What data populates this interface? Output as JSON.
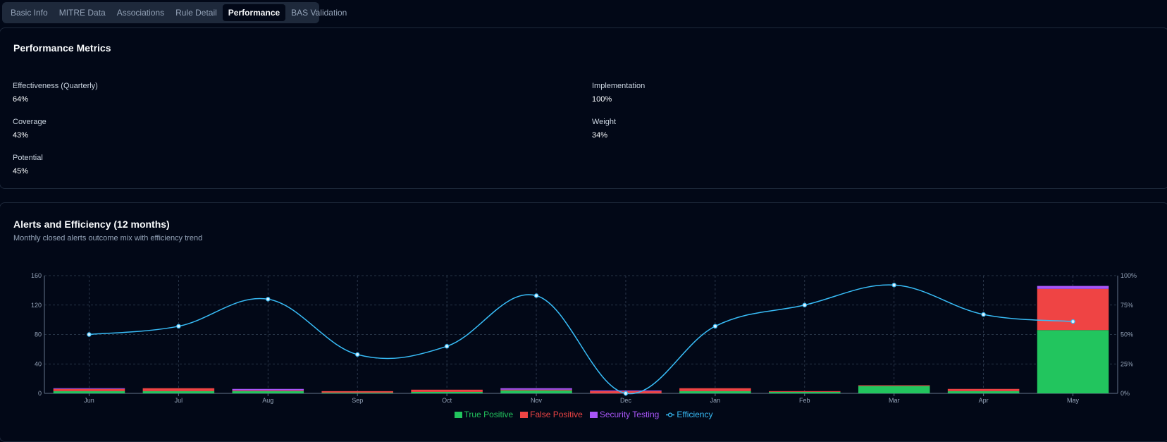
{
  "tabs": [
    {
      "label": "Basic Info",
      "active": false
    },
    {
      "label": "MITRE Data",
      "active": false
    },
    {
      "label": "Associations",
      "active": false
    },
    {
      "label": "Rule Detail",
      "active": false
    },
    {
      "label": "Performance",
      "active": true
    },
    {
      "label": "BAS Validation",
      "active": false
    }
  ],
  "performance": {
    "title": "Performance Metrics",
    "metrics": {
      "effectiveness": {
        "label": "Effectiveness (Quarterly)",
        "value": "64%"
      },
      "implementation": {
        "label": "Implementation",
        "value": "100%"
      },
      "coverage": {
        "label": "Coverage",
        "value": "43%"
      },
      "weight": {
        "label": "Weight",
        "value": "34%"
      },
      "potential": {
        "label": "Potential",
        "value": "45%"
      }
    }
  },
  "alerts": {
    "title": "Alerts and Efficiency (12 months)",
    "subtitle": "Monthly closed alerts outcome mix with efficiency trend"
  },
  "colors": {
    "true_positive": "#22c55e",
    "false_positive": "#ef4444",
    "security_testing": "#a855f7",
    "efficiency": "#38bdf8"
  },
  "chart_data": {
    "type": "bar",
    "stacked": true,
    "categories": [
      "Jun",
      "Jul",
      "Aug",
      "Sep",
      "Oct",
      "Nov",
      "Dec",
      "Jan",
      "Feb",
      "Mar",
      "Apr",
      "May"
    ],
    "series": [
      {
        "name": "True Positive",
        "type": "bar",
        "axis": "left",
        "values": [
          3,
          3,
          3,
          1,
          2,
          4,
          0,
          3,
          2,
          10,
          3,
          86
        ]
      },
      {
        "name": "False Positive",
        "type": "bar",
        "axis": "left",
        "values": [
          3,
          4,
          1,
          2,
          3,
          1,
          3,
          4,
          1,
          1,
          3,
          56
        ]
      },
      {
        "name": "Security Testing",
        "type": "bar",
        "axis": "left",
        "values": [
          1,
          0,
          2,
          0,
          0,
          2,
          1,
          0,
          0,
          0,
          0,
          4
        ]
      },
      {
        "name": "Efficiency",
        "type": "line",
        "axis": "right",
        "values": [
          50,
          57,
          80,
          33,
          40,
          83,
          0,
          57,
          75,
          92,
          67,
          61
        ]
      }
    ],
    "y_left": {
      "min": 0,
      "max": 160,
      "ticks": [
        0,
        40,
        80,
        120,
        160
      ]
    },
    "y_right": {
      "min": 0,
      "max": 100,
      "ticks": [
        "0%",
        "25%",
        "50%",
        "75%",
        "100%"
      ]
    },
    "grid": true,
    "legend_placement": "bottom-center"
  }
}
